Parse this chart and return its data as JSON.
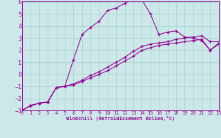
{
  "xlabel": "Windchill (Refroidissement éolien,°C)",
  "bg_color": "#cce8e8",
  "line_color": "#990099",
  "grid_color": "#aad4d4",
  "xmin": 0,
  "xmax": 23,
  "ymin": -3,
  "ymax": 6,
  "yticks": [
    -3,
    -2,
    -1,
    0,
    1,
    2,
    3,
    4,
    5,
    6
  ],
  "xticks": [
    0,
    1,
    2,
    3,
    4,
    5,
    6,
    7,
    8,
    9,
    10,
    11,
    12,
    13,
    14,
    15,
    16,
    17,
    18,
    19,
    20,
    21,
    22,
    23
  ],
  "series1_x": [
    0,
    1,
    2,
    3,
    4,
    5,
    6,
    7,
    8,
    9,
    10,
    11,
    12,
    13,
    14,
    15,
    16,
    17,
    18,
    19,
    20,
    21,
    22,
    23
  ],
  "series1_y": [
    -3.0,
    -2.6,
    -2.4,
    -2.3,
    -1.1,
    -1.0,
    -0.9,
    -0.6,
    -0.3,
    0.0,
    0.3,
    0.7,
    1.1,
    1.5,
    2.0,
    2.2,
    2.4,
    2.5,
    2.6,
    2.7,
    2.8,
    2.9,
    2.0,
    2.5
  ],
  "series2_x": [
    0,
    1,
    2,
    3,
    4,
    5,
    6,
    7,
    8,
    9,
    10,
    11,
    12,
    13,
    14,
    15,
    16,
    17,
    18,
    19,
    20,
    21,
    22,
    23
  ],
  "series2_y": [
    -3.0,
    -2.6,
    -2.4,
    -2.3,
    -1.1,
    -1.0,
    -0.8,
    -0.5,
    -0.1,
    0.2,
    0.6,
    1.0,
    1.4,
    1.9,
    2.3,
    2.5,
    2.6,
    2.7,
    2.9,
    3.0,
    3.1,
    3.2,
    2.7,
    2.7
  ],
  "series3_x": [
    0,
    1,
    2,
    3,
    4,
    5,
    6,
    7,
    8,
    9,
    10,
    11,
    12,
    13,
    14,
    15,
    16,
    17,
    18,
    19,
    20,
    21,
    22,
    23
  ],
  "series3_y": [
    -3.0,
    -2.6,
    -2.4,
    -2.3,
    -1.1,
    -1.0,
    1.2,
    3.3,
    3.9,
    4.4,
    5.3,
    5.5,
    5.9,
    6.2,
    6.2,
    5.0,
    3.3,
    3.5,
    3.6,
    3.1,
    3.0,
    2.8,
    2.0,
    2.6
  ]
}
